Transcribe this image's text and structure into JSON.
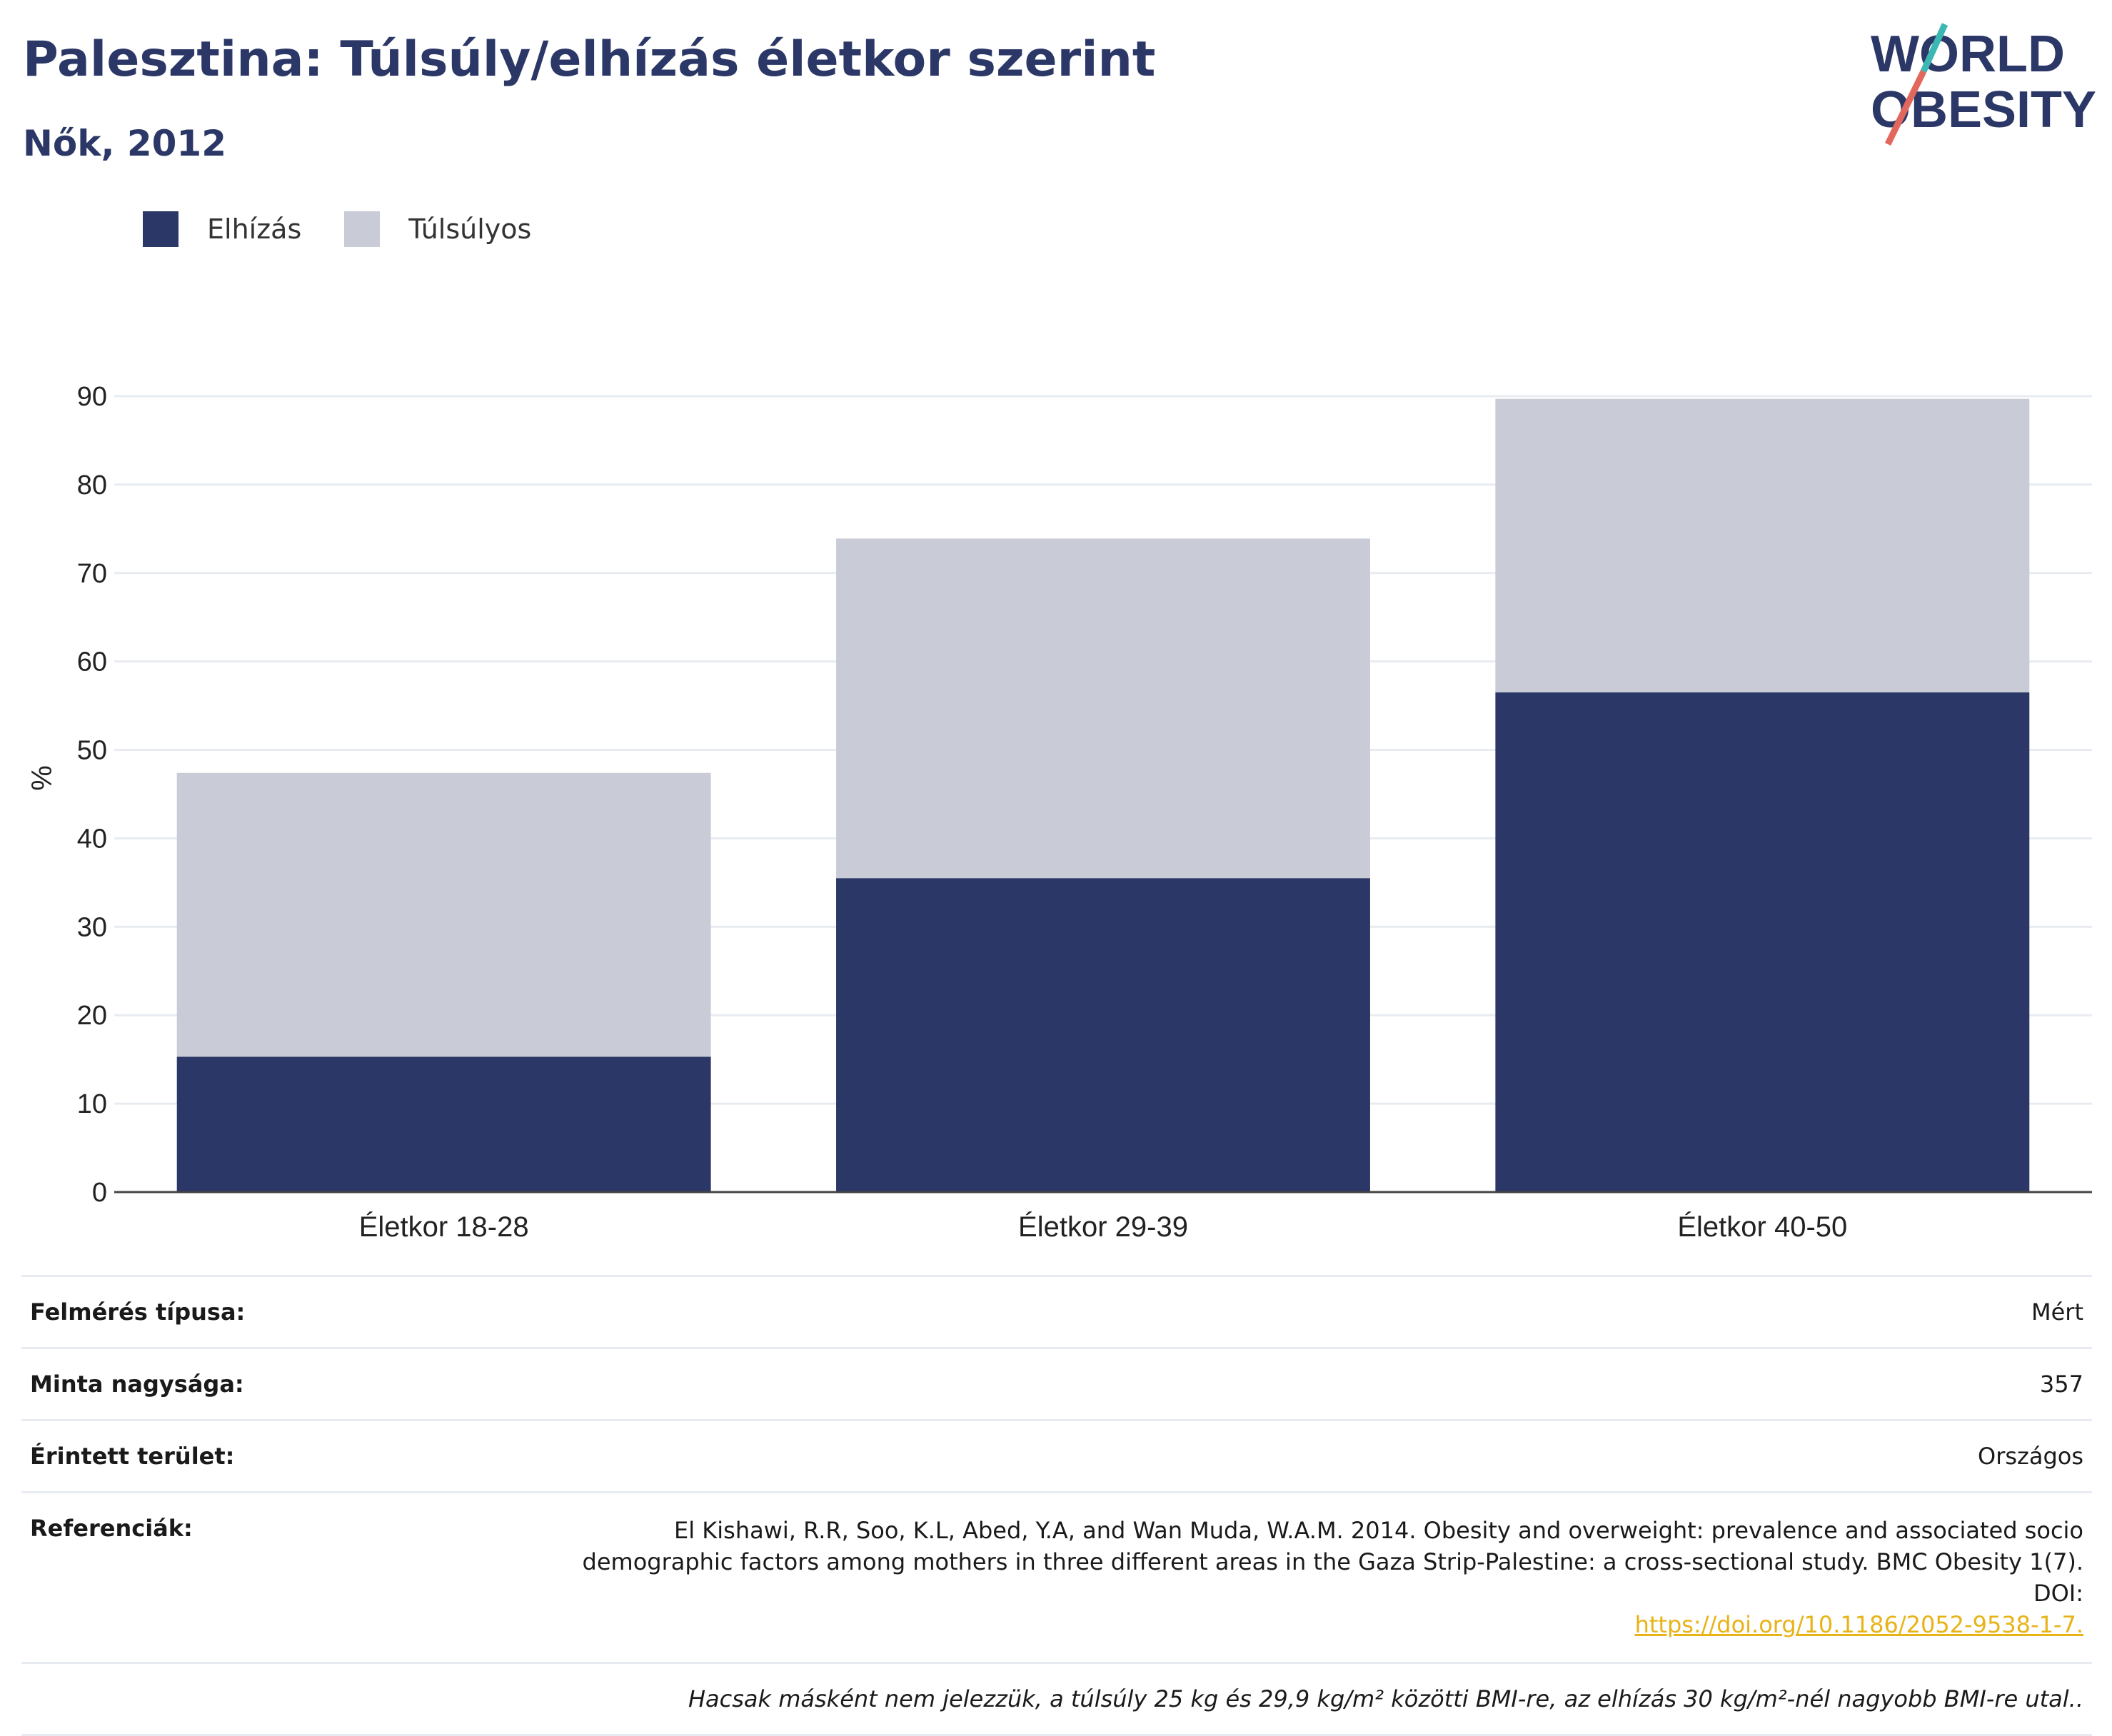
{
  "title": "Palesztina: Túlsúly/elhízás életkor szerint",
  "subtitle": "Nők, 2012",
  "logo": {
    "line1": "WORLD",
    "line2": "OBESITY"
  },
  "legend": [
    {
      "label": "Elhízás",
      "color": "#2b3766"
    },
    {
      "label": "Túlsúlyos",
      "color": "#c9cbd7"
    }
  ],
  "chart_data": {
    "type": "bar",
    "stacked": true,
    "categories": [
      "Életkor 18-28",
      "Életkor 29-39",
      "Életkor 40-50"
    ],
    "series": [
      {
        "name": "Elhízás",
        "values": [
          15.3,
          35.5,
          56.5
        ],
        "color": "#2b3766"
      },
      {
        "name": "Túlsúlyos",
        "values": [
          32.1,
          38.4,
          33.2
        ],
        "color": "#c9cbd7"
      }
    ],
    "ylabel": "%",
    "ylim": [
      0,
      90
    ],
    "yticks": [
      0,
      10,
      20,
      30,
      40,
      50,
      60,
      70,
      80,
      90
    ],
    "grid": true,
    "legend_position": "top-left"
  },
  "info": {
    "survey_type": {
      "label": "Felmérés típusa:",
      "value": "Mért"
    },
    "sample_size": {
      "label": "Minta nagysága:",
      "value": "357"
    },
    "area": {
      "label": "Érintett terület:",
      "value": "Országos"
    },
    "references": {
      "label": "Referenciák:",
      "text": "El Kishawi, R.R, Soo, K.L, Abed, Y.A, and Wan Muda, W.A.M. 2014. Obesity and overweight: prevalence and associated socio demographic factors among mothers in three different areas in the Gaza Strip-Palestine: a cross-sectional study. BMC Obesity 1(7). DOI:",
      "link": "https://doi.org/10.1186/2052-9538-1-7."
    },
    "note": "Hacsak másként nem jelezzük, a túlsúly 25 kg és 29,9 kg/m² közötti BMI-re, az elhízás 30 kg/m²-nél nagyobb BMI-re utal.."
  }
}
